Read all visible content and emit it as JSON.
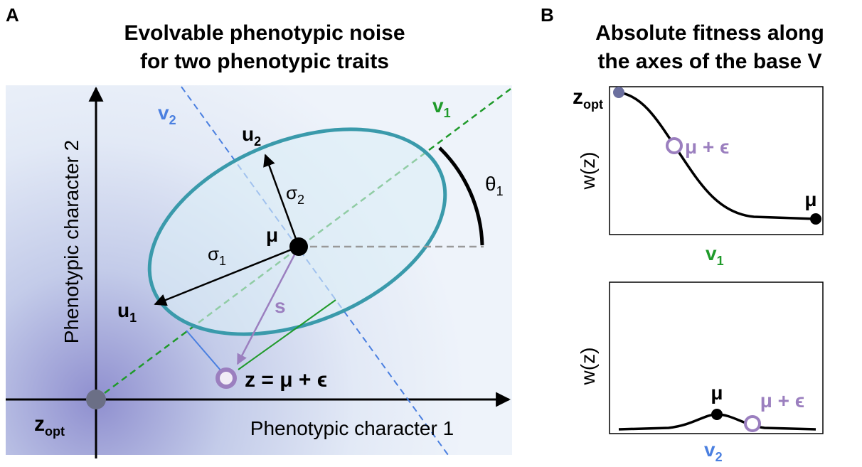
{
  "panel_a": {
    "letter": "A",
    "title_line1": "Evolvable phenotypic noise",
    "title_line2": "for two phenotypic traits",
    "y_axis_label": "Phenotypic character 2",
    "x_axis_label": "Phenotypic character 1",
    "z_opt": {
      "base": "z",
      "sub": "opt"
    },
    "v2": {
      "base": "v",
      "sub": "2"
    },
    "v1": {
      "base": "v",
      "sub": "1"
    },
    "u2": {
      "base": "u",
      "sub": "2"
    },
    "u1": {
      "base": "u",
      "sub": "1"
    },
    "sigma2": {
      "base": "σ",
      "sub": "2"
    },
    "sigma1": {
      "base": "σ",
      "sub": "1"
    },
    "mu": "μ",
    "theta1": {
      "base": "θ",
      "sub": "1"
    },
    "s": "s",
    "z_eq": "z = μ + ϵ"
  },
  "panel_b": {
    "letter": "B",
    "title_line1": "Absolute fitness along",
    "title_line2": "the axes of the base V",
    "top": {
      "z_opt": {
        "base": "z",
        "sub": "opt"
      },
      "mu_eps": "μ + ϵ",
      "y_label": "w(z)",
      "mu": "μ",
      "x_label": {
        "base": "v",
        "sub": "1"
      }
    },
    "bottom": {
      "y_label": "w(z)",
      "mu": "μ",
      "mu_eps": "μ + ϵ",
      "x_label": {
        "base": "v",
        "sub": "2"
      }
    }
  }
}
